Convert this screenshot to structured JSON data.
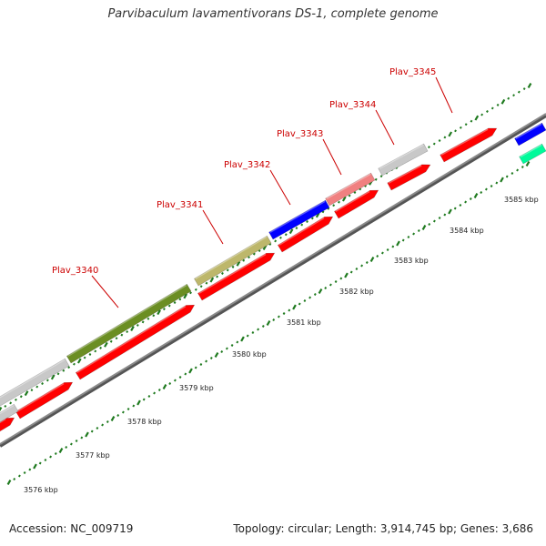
{
  "title": "Parvibaculum lavamentivorans DS-1, complete genome",
  "accession": "Accession: NC_009719",
  "topology": "Topology: circular; Length: 3,914,745 bp; Genes: 3,686",
  "colors": {
    "tick": "#1f7a1f",
    "backbone": "#8a8a8a",
    "cds": "#ff0000"
  },
  "kbp_labels": [
    "3576 kbp",
    "3577 kbp",
    "3578 kbp",
    "3579 kbp",
    "3580 kbp",
    "3581 kbp",
    "3582 kbp",
    "3583 kbp",
    "3584 kbp",
    "3585 kbp"
  ],
  "features": [
    {
      "label": "",
      "color": "#c8c8c8"
    },
    {
      "label": "",
      "color": "#c8c8c8"
    },
    {
      "label": "Plav_3340",
      "color": "#6b8e23"
    },
    {
      "label": "Plav_3341",
      "color": "#bdb76b"
    },
    {
      "label": "Plav_3342",
      "color": "#0000ff"
    },
    {
      "label": "Plav_3343",
      "color": "#f08080"
    },
    {
      "label": "Plav_3344",
      "color": "#c8c8c8"
    },
    {
      "label": "Plav_3345",
      "color": ""
    },
    {
      "label": "",
      "color": "#0000ff"
    },
    {
      "label": "",
      "color": "#00fa9a"
    }
  ]
}
